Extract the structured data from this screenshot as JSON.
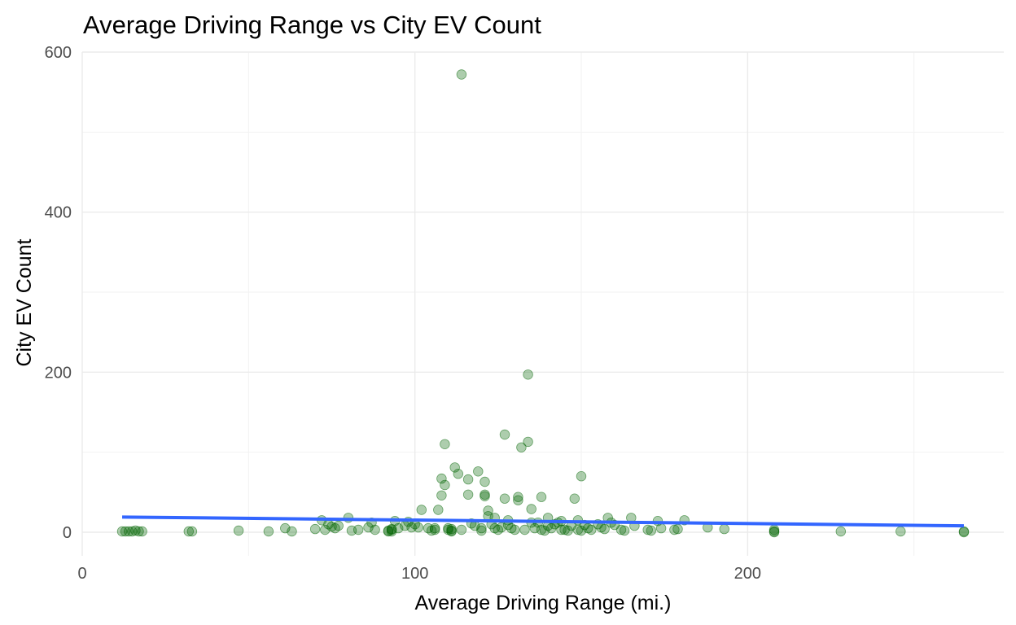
{
  "chart_data": {
    "type": "scatter",
    "title": "Average Driving Range vs City EV Count",
    "xlabel": "Average Driving Range (mi.)",
    "ylabel": "City EV Count",
    "xlim": [
      0,
      277
    ],
    "ylim": [
      -28,
      600
    ],
    "xticks": [
      0,
      100,
      200
    ],
    "xtick_labels": [
      "0",
      "100",
      "200"
    ],
    "yticks": [
      0,
      200,
      400,
      600
    ],
    "ytick_labels": [
      "0",
      "200",
      "400",
      "600"
    ],
    "grid": true,
    "legend": "none",
    "colors": {
      "points": "#006400",
      "trend": "#3366ff",
      "grid": "#ebebeb"
    },
    "series": [
      {
        "points": [
          [
            12,
            1
          ],
          [
            13,
            1
          ],
          [
            14,
            1
          ],
          [
            15,
            1
          ],
          [
            16,
            2
          ],
          [
            17,
            1
          ],
          [
            18,
            1
          ],
          [
            32,
            1
          ],
          [
            33,
            1
          ],
          [
            47,
            2
          ],
          [
            56,
            1
          ],
          [
            61,
            5
          ],
          [
            63,
            1
          ],
          [
            70,
            4
          ],
          [
            72,
            15
          ],
          [
            73,
            3
          ],
          [
            74,
            10
          ],
          [
            75,
            7
          ],
          [
            76,
            5
          ],
          [
            77,
            8
          ],
          [
            80,
            18
          ],
          [
            81,
            2
          ],
          [
            83,
            3
          ],
          [
            86,
            6
          ],
          [
            87,
            12
          ],
          [
            88,
            3
          ],
          [
            92,
            2
          ],
          [
            92,
            1
          ],
          [
            93,
            4
          ],
          [
            93,
            1
          ],
          [
            93,
            3
          ],
          [
            94,
            14
          ],
          [
            95,
            5
          ],
          [
            97,
            8
          ],
          [
            98,
            13
          ],
          [
            99,
            6
          ],
          [
            100,
            10
          ],
          [
            101,
            6
          ],
          [
            102,
            28
          ],
          [
            104,
            5
          ],
          [
            105,
            2
          ],
          [
            106,
            3
          ],
          [
            106,
            5
          ],
          [
            107,
            28
          ],
          [
            108,
            67
          ],
          [
            108,
            46
          ],
          [
            109,
            110
          ],
          [
            109,
            59
          ],
          [
            110,
            5
          ],
          [
            110,
            3
          ],
          [
            111,
            2
          ],
          [
            111,
            4
          ],
          [
            111,
            1
          ],
          [
            112,
            81
          ],
          [
            113,
            73
          ],
          [
            114,
            572
          ],
          [
            114,
            3
          ],
          [
            116,
            66
          ],
          [
            116,
            47
          ],
          [
            117,
            11
          ],
          [
            118,
            8
          ],
          [
            119,
            76
          ],
          [
            120,
            2
          ],
          [
            120,
            5
          ],
          [
            121,
            47
          ],
          [
            121,
            45
          ],
          [
            121,
            63
          ],
          [
            122,
            27
          ],
          [
            122,
            20
          ],
          [
            123,
            10
          ],
          [
            124,
            5
          ],
          [
            124,
            18
          ],
          [
            125,
            3
          ],
          [
            126,
            6
          ],
          [
            127,
            122
          ],
          [
            127,
            42
          ],
          [
            128,
            9
          ],
          [
            128,
            15
          ],
          [
            129,
            5
          ],
          [
            130,
            3
          ],
          [
            131,
            44
          ],
          [
            131,
            40
          ],
          [
            132,
            106
          ],
          [
            133,
            3
          ],
          [
            134,
            197
          ],
          [
            134,
            113
          ],
          [
            135,
            29
          ],
          [
            135,
            12
          ],
          [
            136,
            5
          ],
          [
            137,
            12
          ],
          [
            138,
            44
          ],
          [
            138,
            3
          ],
          [
            139,
            2
          ],
          [
            140,
            18
          ],
          [
            140,
            8
          ],
          [
            141,
            5
          ],
          [
            142,
            10
          ],
          [
            143,
            12
          ],
          [
            144,
            3
          ],
          [
            144,
            14
          ],
          [
            145,
            3
          ],
          [
            146,
            2
          ],
          [
            147,
            8
          ],
          [
            148,
            42
          ],
          [
            149,
            15
          ],
          [
            149,
            3
          ],
          [
            150,
            70
          ],
          [
            150,
            2
          ],
          [
            151,
            9
          ],
          [
            152,
            5
          ],
          [
            153,
            3
          ],
          [
            155,
            10
          ],
          [
            156,
            6
          ],
          [
            157,
            4
          ],
          [
            158,
            18
          ],
          [
            159,
            12
          ],
          [
            160,
            9
          ],
          [
            162,
            3
          ],
          [
            163,
            2
          ],
          [
            165,
            18
          ],
          [
            166,
            8
          ],
          [
            170,
            3
          ],
          [
            171,
            2
          ],
          [
            173,
            14
          ],
          [
            174,
            5
          ],
          [
            178,
            3
          ],
          [
            179,
            4
          ],
          [
            181,
            15
          ],
          [
            188,
            6
          ],
          [
            193,
            4
          ],
          [
            208,
            1
          ],
          [
            208,
            3
          ],
          [
            208,
            0
          ],
          [
            228,
            1
          ],
          [
            246,
            1
          ],
          [
            265,
            1
          ],
          [
            265,
            0
          ]
        ]
      }
    ],
    "trend_line": {
      "x": [
        12,
        265
      ],
      "y": [
        19,
        8
      ]
    }
  }
}
